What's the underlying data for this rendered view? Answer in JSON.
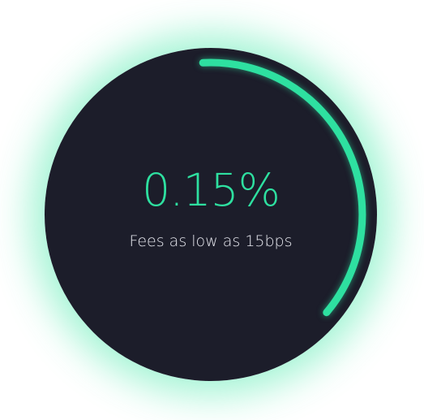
{
  "fee": {
    "value": "0.15%",
    "caption": "Fees as low as 15bps",
    "progress": 0.37
  },
  "colors": {
    "accent": "#2ee0a0",
    "glow": "#34e6a0",
    "disc": "#1c1d2a",
    "caption_text": "#e6e7ee",
    "background": "#ffffff"
  }
}
